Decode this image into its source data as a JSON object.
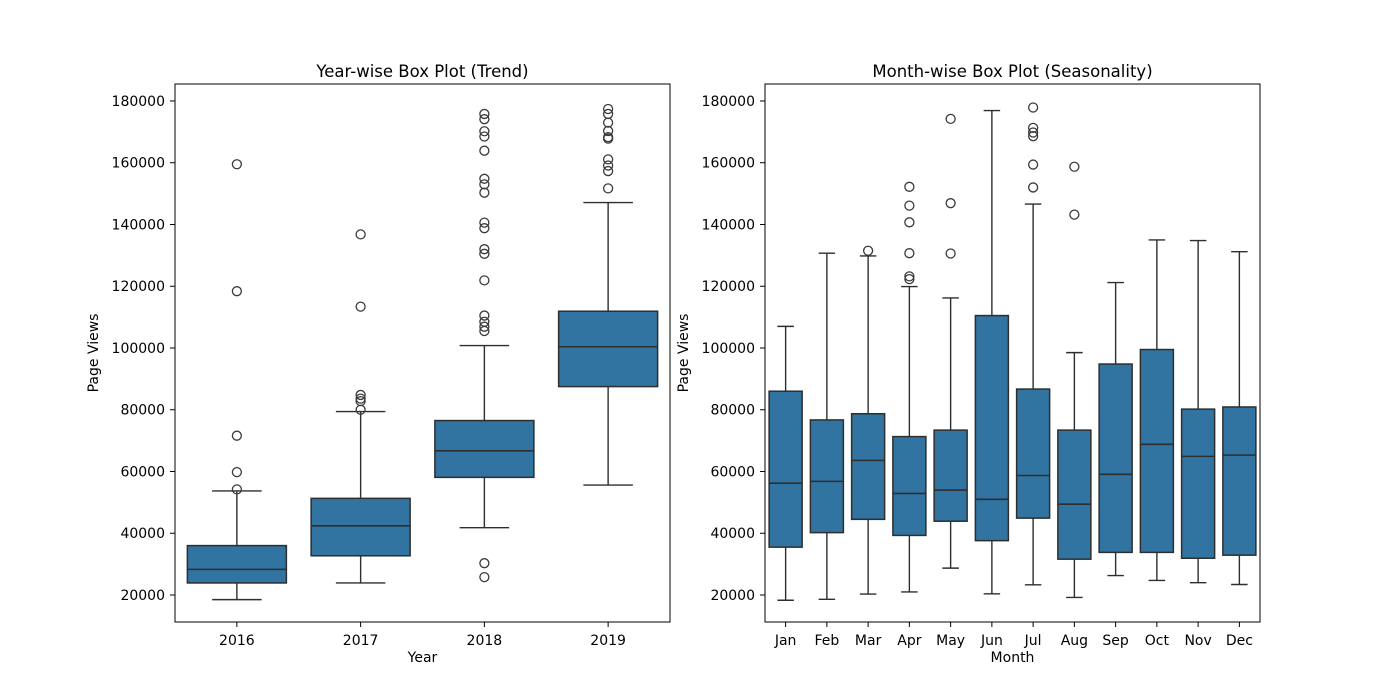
{
  "figure": {
    "background": "#ffffff",
    "text_color": "#000000"
  },
  "chart_data": [
    {
      "type": "box",
      "title": "Year-wise Box Plot (Trend)",
      "xlabel": "Year",
      "ylabel": "Page Views",
      "ylim": [
        11255,
        185500
      ],
      "yticks": [
        20000,
        40000,
        60000,
        80000,
        100000,
        120000,
        140000,
        160000,
        180000
      ],
      "grid": false,
      "legend": "none",
      "box_fill": "#3274A1",
      "box_edge": "#2e2e2e",
      "outlier_edge": "#3a3a3a",
      "categories": [
        "2016",
        "2017",
        "2018",
        "2019"
      ],
      "series": [
        {
          "label": "2016",
          "whislo": 18500,
          "q1": 23900,
          "med": 28300,
          "q3": 36000,
          "whishi": 53700,
          "outliers": [
            54200,
            59800,
            71600,
            118400,
            159500
          ]
        },
        {
          "label": "2017",
          "whislo": 23900,
          "q1": 32700,
          "med": 42400,
          "q3": 51300,
          "whishi": 79400,
          "outliers": [
            80000,
            82800,
            83600,
            84800,
            113400,
            136800
          ]
        },
        {
          "label": "2018",
          "whislo": 41800,
          "q1": 58100,
          "med": 66700,
          "q3": 76500,
          "whishi": 100800,
          "outliers": [
            25800,
            30300,
            105500,
            106900,
            108500,
            110500,
            121900,
            130500,
            132000,
            138800,
            140600,
            150300,
            153000,
            154800,
            163900,
            168500,
            170200,
            174100,
            175800
          ]
        },
        {
          "label": "2019",
          "whislo": 55600,
          "q1": 87500,
          "med": 100400,
          "q3": 111900,
          "whishi": 147100,
          "outliers": [
            151700,
            157300,
            159100,
            161100,
            167800,
            168300,
            170300,
            173000,
            175800,
            177400
          ]
        }
      ]
    },
    {
      "type": "box",
      "title": "Month-wise Box Plot (Seasonality)",
      "xlabel": "Month",
      "ylabel": "Page Views",
      "ylim": [
        11255,
        185500
      ],
      "yticks": [
        20000,
        40000,
        60000,
        80000,
        100000,
        120000,
        140000,
        160000,
        180000
      ],
      "grid": false,
      "legend": "none",
      "box_fill": "#3274A1",
      "box_edge": "#2e2e2e",
      "outlier_edge": "#3a3a3a",
      "categories": [
        "Jan",
        "Feb",
        "Mar",
        "Apr",
        "May",
        "Jun",
        "Jul",
        "Aug",
        "Sep",
        "Oct",
        "Nov",
        "Dec"
      ],
      "series": [
        {
          "label": "Jan",
          "whislo": 18300,
          "q1": 35500,
          "med": 56200,
          "q3": 86000,
          "whishi": 107000,
          "outliers": []
        },
        {
          "label": "Feb",
          "whislo": 18600,
          "q1": 40200,
          "med": 56800,
          "q3": 76700,
          "whishi": 130700,
          "outliers": []
        },
        {
          "label": "Mar",
          "whislo": 20300,
          "q1": 44500,
          "med": 63600,
          "q3": 78700,
          "whishi": 129800,
          "outliers": [
            131500
          ]
        },
        {
          "label": "Apr",
          "whislo": 21000,
          "q1": 39300,
          "med": 52900,
          "q3": 71300,
          "whishi": 119900,
          "outliers": [
            122300,
            123200,
            130700,
            140700,
            146100,
            152200
          ]
        },
        {
          "label": "May",
          "whislo": 28700,
          "q1": 43900,
          "med": 54000,
          "q3": 73400,
          "whishi": 116200,
          "outliers": [
            130600,
            146900,
            174200
          ]
        },
        {
          "label": "Jun",
          "whislo": 20400,
          "q1": 37600,
          "med": 51000,
          "q3": 110500,
          "whishi": 176900,
          "outliers": []
        },
        {
          "label": "Jul",
          "whislo": 23300,
          "q1": 44900,
          "med": 58700,
          "q3": 86700,
          "whishi": 146600,
          "outliers": [
            152000,
            159400,
            168600,
            169800,
            171300,
            177900
          ]
        },
        {
          "label": "Aug",
          "whislo": 19200,
          "q1": 31600,
          "med": 49400,
          "q3": 73400,
          "whishi": 98500,
          "outliers": [
            143200,
            158700
          ]
        },
        {
          "label": "Sep",
          "whislo": 26300,
          "q1": 33800,
          "med": 59100,
          "q3": 94800,
          "whishi": 121200,
          "outliers": []
        },
        {
          "label": "Oct",
          "whislo": 24700,
          "q1": 33800,
          "med": 68800,
          "q3": 99500,
          "whishi": 135000,
          "outliers": []
        },
        {
          "label": "Nov",
          "whislo": 24000,
          "q1": 31900,
          "med": 64900,
          "q3": 80200,
          "whishi": 134800,
          "outliers": []
        },
        {
          "label": "Dec",
          "whislo": 23400,
          "q1": 32900,
          "med": 65300,
          "q3": 80900,
          "whishi": 131200,
          "outliers": []
        }
      ]
    }
  ]
}
